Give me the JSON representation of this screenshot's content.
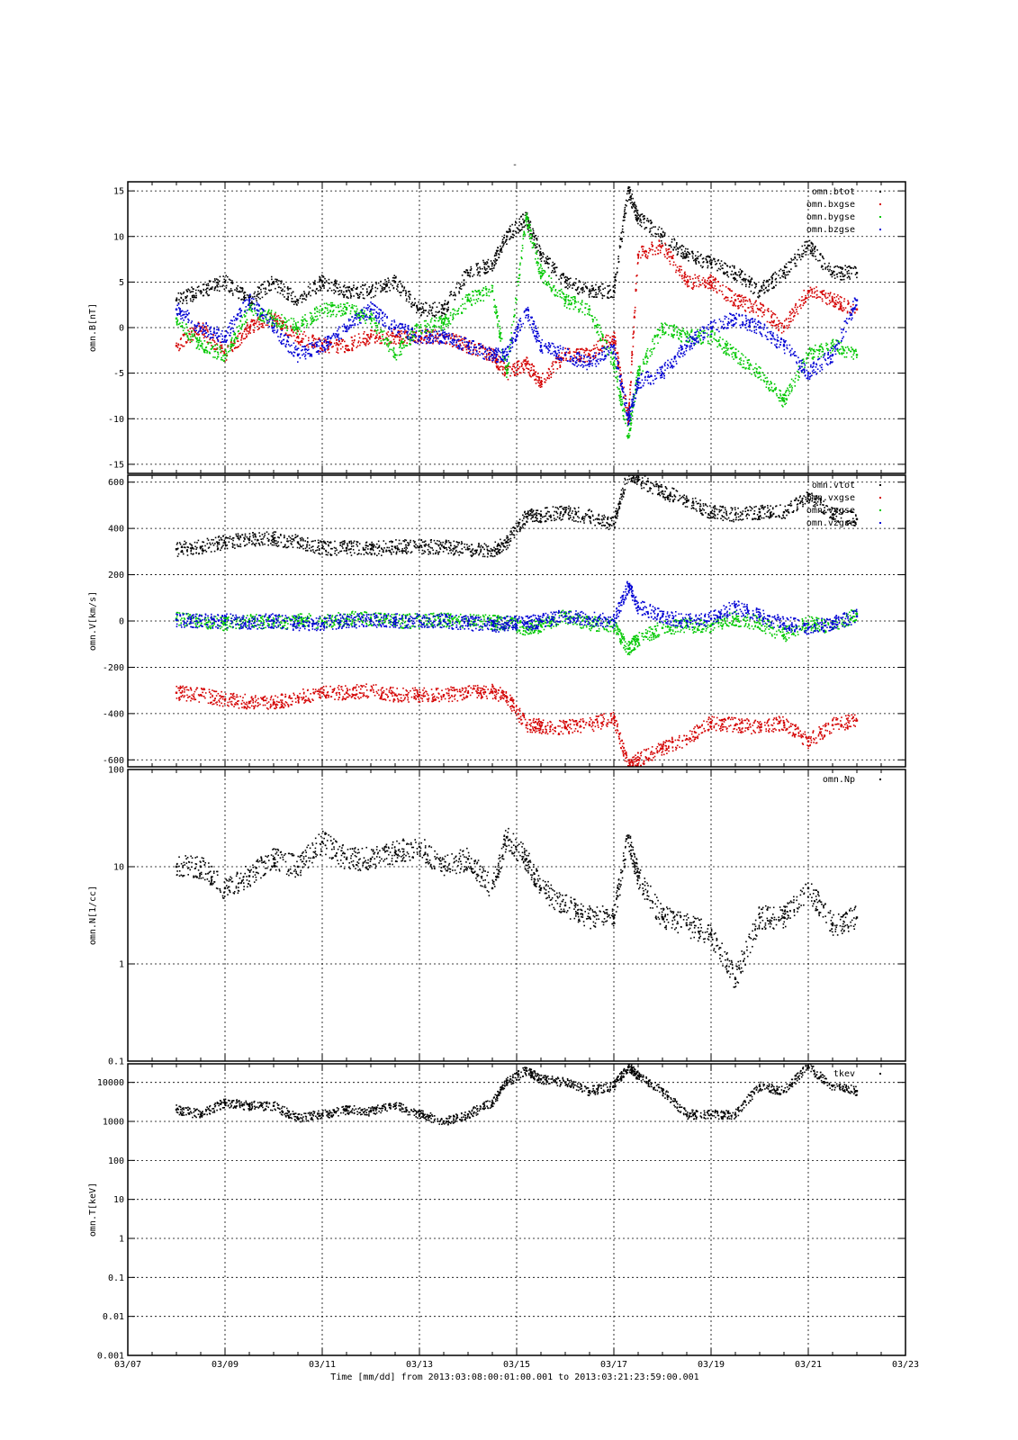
{
  "page": {
    "title": "-"
  },
  "xaxis": {
    "tick_labels": [
      "03/07",
      "03/09",
      "03/11",
      "03/13",
      "03/15",
      "03/17",
      "03/19",
      "03/21",
      "03/23"
    ],
    "range_days": [
      7,
      23
    ],
    "caption": "Time [mm/dd]  from 2013:03:08:00:01:00.001  to  2013:03:21:23:59:00.001"
  },
  "colors": {
    "black": "#000000",
    "red": "#d40000",
    "green": "#00c800",
    "blue": "#0000d4"
  },
  "chart_data": [
    {
      "type": "scatter",
      "ylabel": "omn.B[nT]",
      "ylim": [
        -16,
        16
      ],
      "yscale": "linear",
      "yticks": [
        -15,
        -10,
        -5,
        0,
        5,
        10,
        15
      ],
      "legend": "top-right",
      "series": [
        {
          "name": "omn.btot",
          "color": "black",
          "x": [
            8.0,
            8.5,
            9.0,
            9.5,
            10.0,
            10.5,
            11.0,
            11.5,
            12.0,
            12.5,
            13.0,
            13.5,
            14.0,
            14.5,
            14.8,
            15.2,
            15.5,
            16.0,
            16.5,
            17.0,
            17.3,
            17.5,
            18.0,
            18.5,
            19.0,
            19.5,
            20.0,
            20.5,
            21.0,
            21.5,
            22.0
          ],
          "y": [
            3,
            4,
            5,
            3,
            5,
            3,
            5,
            4,
            4,
            5,
            2,
            2,
            6,
            7,
            10,
            12,
            8,
            5,
            4,
            4,
            15,
            12,
            10,
            8,
            7,
            6,
            4,
            6,
            9,
            6,
            6
          ]
        },
        {
          "name": "omn.bxgse",
          "color": "red",
          "x": [
            8.0,
            8.5,
            9.0,
            9.5,
            10.0,
            10.5,
            11.0,
            11.5,
            12.0,
            12.5,
            13.0,
            13.5,
            14.0,
            14.5,
            14.8,
            15.2,
            15.5,
            16.0,
            16.5,
            17.0,
            17.3,
            17.5,
            18.0,
            18.5,
            19.0,
            19.5,
            20.0,
            20.5,
            21.0,
            21.5,
            22.0
          ],
          "y": [
            -2,
            0,
            -3,
            0,
            1,
            -1,
            -2,
            -2,
            -1,
            -1,
            -1,
            -1,
            -2,
            -3,
            -5,
            -4,
            -6,
            -3,
            -3,
            -1,
            -10,
            8,
            9,
            5,
            5,
            3,
            2,
            0,
            4,
            3,
            2
          ]
        },
        {
          "name": "omn.bygse",
          "color": "green",
          "x": [
            8.0,
            8.5,
            9.0,
            9.5,
            10.0,
            10.5,
            11.0,
            11.5,
            12.0,
            12.5,
            13.0,
            13.5,
            14.0,
            14.5,
            14.8,
            15.2,
            15.5,
            16.0,
            16.5,
            17.0,
            17.3,
            17.5,
            18.0,
            18.5,
            19.0,
            19.5,
            20.0,
            20.5,
            21.0,
            21.5,
            22.0
          ],
          "y": [
            1,
            -2,
            -3,
            2,
            1,
            0,
            2,
            2,
            1,
            -3,
            0,
            0.5,
            3,
            4,
            -5,
            12,
            6,
            3,
            2,
            -4,
            -12,
            -5,
            0,
            -1,
            -1,
            -3,
            -5,
            -8,
            -3,
            -2,
            -3
          ]
        },
        {
          "name": "omn.bzgse",
          "color": "blue",
          "x": [
            8.0,
            8.5,
            9.0,
            9.5,
            10.0,
            10.5,
            11.0,
            11.5,
            12.0,
            12.5,
            13.0,
            13.5,
            14.0,
            14.5,
            14.8,
            15.2,
            15.5,
            16.0,
            16.5,
            17.0,
            17.3,
            17.5,
            18.0,
            18.5,
            19.0,
            19.5,
            20.0,
            20.5,
            21.0,
            21.5,
            22.0
          ],
          "y": [
            2,
            0,
            -1,
            3,
            0,
            -3,
            -2,
            0,
            2,
            0,
            -1,
            -1,
            -2,
            -3,
            -3,
            2,
            -2,
            -3,
            -4,
            -2,
            -10,
            -6,
            -5,
            -2,
            0,
            1,
            0,
            -2,
            -5,
            -3,
            3
          ]
        }
      ]
    },
    {
      "type": "scatter",
      "ylabel": "omn.V[km/s]",
      "ylim": [
        -630,
        630
      ],
      "yscale": "linear",
      "yticks": [
        -600,
        -400,
        -200,
        0,
        200,
        400,
        600
      ],
      "legend": "top-right",
      "series": [
        {
          "name": "omn.vtot",
          "color": "black",
          "x": [
            8.0,
            8.5,
            9.0,
            9.5,
            10.0,
            10.5,
            11.0,
            11.5,
            12.0,
            12.5,
            13.0,
            13.5,
            14.0,
            14.5,
            14.8,
            15.2,
            15.5,
            16.0,
            16.5,
            17.0,
            17.3,
            17.5,
            18.0,
            18.5,
            19.0,
            19.5,
            20.0,
            20.5,
            21.0,
            21.5,
            22.0
          ],
          "y": [
            310,
            320,
            340,
            350,
            355,
            340,
            315,
            315,
            310,
            320,
            320,
            320,
            310,
            305,
            340,
            450,
            455,
            470,
            450,
            420,
            640,
            610,
            560,
            520,
            470,
            460,
            470,
            470,
            540,
            460,
            440
          ]
        },
        {
          "name": "omn.vxgse",
          "color": "red",
          "x": [
            8.0,
            8.5,
            9.0,
            9.5,
            10.0,
            10.5,
            11.0,
            11.5,
            12.0,
            12.5,
            13.0,
            13.5,
            14.0,
            14.5,
            14.8,
            15.2,
            15.5,
            16.0,
            16.5,
            17.0,
            17.3,
            17.5,
            18.0,
            18.5,
            19.0,
            19.5,
            20.0,
            20.5,
            21.0,
            21.5,
            22.0
          ],
          "y": [
            -310,
            -320,
            -340,
            -350,
            -355,
            -330,
            -310,
            -310,
            -300,
            -320,
            -320,
            -320,
            -310,
            -305,
            -330,
            -450,
            -455,
            -460,
            -450,
            -420,
            -630,
            -600,
            -550,
            -510,
            -440,
            -450,
            -460,
            -440,
            -520,
            -450,
            -430
          ]
        },
        {
          "name": "omn.vygse",
          "color": "green",
          "x": [
            8.0,
            8.5,
            9.0,
            9.5,
            10.0,
            10.5,
            11.0,
            11.5,
            12.0,
            12.5,
            13.0,
            13.5,
            14.0,
            14.5,
            14.8,
            15.2,
            15.5,
            16.0,
            16.5,
            17.0,
            17.3,
            17.5,
            18.0,
            18.5,
            19.0,
            19.5,
            20.0,
            20.5,
            21.0,
            21.5,
            22.0
          ],
          "y": [
            10,
            0,
            -10,
            0,
            -10,
            0,
            0,
            10,
            10,
            0,
            0,
            5,
            0,
            -5,
            -10,
            -30,
            -20,
            20,
            -10,
            -20,
            -120,
            -80,
            -30,
            -20,
            -20,
            10,
            -10,
            -60,
            -10,
            -30,
            30
          ]
        },
        {
          "name": "omn.vzgse",
          "color": "blue",
          "x": [
            8.0,
            8.5,
            9.0,
            9.5,
            10.0,
            10.5,
            11.0,
            11.5,
            12.0,
            12.5,
            13.0,
            13.5,
            14.0,
            14.5,
            14.8,
            15.2,
            15.5,
            16.0,
            16.5,
            17.0,
            17.3,
            17.5,
            18.0,
            18.5,
            19.0,
            19.5,
            20.0,
            20.5,
            21.0,
            21.5,
            22.0
          ],
          "y": [
            5,
            0,
            0,
            -5,
            0,
            -10,
            -10,
            0,
            0,
            0,
            0,
            0,
            -10,
            -20,
            -10,
            -10,
            0,
            20,
            10,
            0,
            150,
            60,
            20,
            0,
            10,
            60,
            20,
            -10,
            -30,
            -10,
            20
          ]
        }
      ]
    },
    {
      "type": "scatter",
      "ylabel": "omn.N[1/cc]",
      "ylim": [
        0.1,
        100
      ],
      "yscale": "log",
      "yticks": [
        0.1,
        1,
        10,
        100
      ],
      "ytick_labels": [
        "0.1",
        "1",
        "10",
        "100"
      ],
      "legend": "top-right",
      "series": [
        {
          "name": "omn.Np",
          "color": "black",
          "x": [
            8.0,
            8.5,
            9.0,
            9.5,
            10.0,
            10.5,
            11.0,
            11.5,
            12.0,
            12.5,
            13.0,
            13.5,
            14.0,
            14.5,
            14.8,
            15.2,
            15.5,
            16.0,
            16.5,
            17.0,
            17.3,
            17.5,
            18.0,
            18.5,
            19.0,
            19.5,
            20.0,
            20.5,
            21.0,
            21.5,
            22.0
          ],
          "y": [
            10,
            10,
            6,
            8,
            12,
            10,
            18,
            12,
            12,
            14,
            16,
            10,
            12,
            6,
            20,
            12,
            6,
            4,
            3,
            3,
            20,
            8,
            3,
            2.5,
            2,
            0.7,
            3,
            3,
            6,
            2.5,
            3
          ]
        }
      ]
    },
    {
      "type": "scatter",
      "ylabel": "omn.T[keV]",
      "ylim": [
        0.001,
        30000
      ],
      "yscale": "log",
      "yticks": [
        0.001,
        0.01,
        0.1,
        1,
        10,
        100,
        1000,
        10000
      ],
      "ytick_labels": [
        "0.001",
        "0.01",
        "0.1",
        "1",
        "10",
        "100",
        "1000",
        "10000"
      ],
      "legend": "top-right",
      "series": [
        {
          "name": "tkev",
          "color": "black",
          "x": [
            8.0,
            8.5,
            9.0,
            9.5,
            10.0,
            10.5,
            11.0,
            11.5,
            12.0,
            12.5,
            13.0,
            13.5,
            14.0,
            14.5,
            14.8,
            15.2,
            15.5,
            16.0,
            16.5,
            17.0,
            17.3,
            17.5,
            18.0,
            18.5,
            19.0,
            19.5,
            20.0,
            20.5,
            21.0,
            21.5,
            22.0
          ],
          "y": [
            2000,
            1500,
            3000,
            2500,
            2500,
            1200,
            1500,
            2000,
            1800,
            2500,
            1500,
            1000,
            1500,
            3000,
            10000,
            20000,
            12000,
            10000,
            6000,
            8000,
            25000,
            15000,
            6000,
            1500,
            1500,
            1500,
            8000,
            6000,
            25000,
            8000,
            6000
          ]
        }
      ]
    }
  ]
}
